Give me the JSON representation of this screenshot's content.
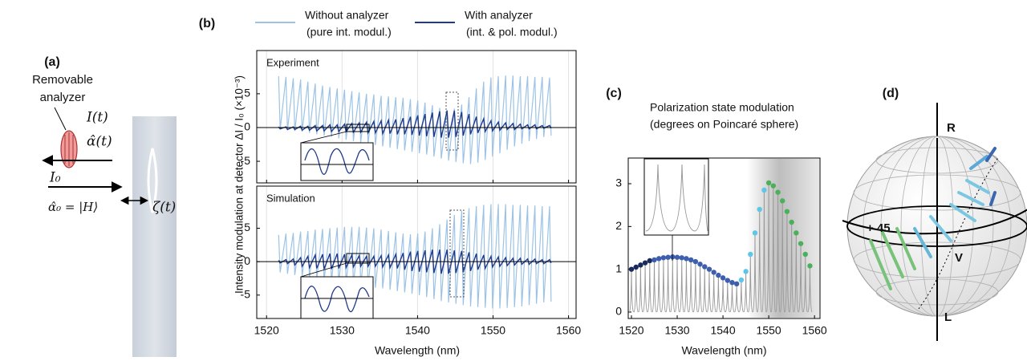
{
  "panel_a": {
    "label": "(a)",
    "analyzer_label": [
      "Removable",
      "analyzer"
    ],
    "intensity": "I(t)",
    "polarization": "α̂(t)",
    "input_intensity": "I₀",
    "input_state": "α̂₀ = |H⟩",
    "displacement": "ζ(t)"
  },
  "panel_b": {
    "label": "(b)",
    "ylabel": "Intensity modulation at detector  ΔI / I₀ (×10⁻³)",
    "xlabel": "Wavelength (nm)"
  },
  "panel_d": {
    "label": "(d)",
    "pole_top": "R",
    "pole_bottom": "L",
    "left_point": "+ 45",
    "front_point": "V"
  },
  "chart_data": [
    {
      "type": "line",
      "title": "Experiment",
      "xlim": [
        1518.7,
        1561
      ],
      "ylim": [
        -8.2,
        11.4
      ],
      "xticks": [
        1520,
        1530,
        1540,
        1550,
        1560
      ],
      "yticks": [
        -5,
        0,
        5
      ],
      "grid": true,
      "x": [
        1521.6,
        1521.8,
        1522.57,
        1522.77,
        1523.54,
        1523.74,
        1524.51,
        1524.71,
        1525.48,
        1525.68,
        1526.45,
        1526.65,
        1527.42,
        1527.62,
        1528.39,
        1528.59,
        1529.36,
        1529.56,
        1530.33,
        1530.53,
        1531.3,
        1531.5,
        1532.27,
        1532.47,
        1533.24,
        1533.44,
        1534.21,
        1534.41,
        1535.18,
        1535.38,
        1536.15,
        1536.35,
        1537.12,
        1537.32,
        1538.09,
        1538.29,
        1539.06,
        1539.26,
        1540.03,
        1540.23,
        1541.0,
        1541.2,
        1541.97,
        1542.17,
        1542.94,
        1543.14,
        1543.91,
        1544.11,
        1544.88,
        1545.08,
        1545.85,
        1546.05,
        1546.82,
        1547.02,
        1547.79,
        1547.99,
        1548.76,
        1548.96,
        1549.73,
        1549.93,
        1550.7,
        1550.9,
        1551.67,
        1551.87,
        1552.64,
        1552.84,
        1553.61,
        1553.81,
        1554.58,
        1554.78,
        1555.55,
        1555.75,
        1556.52,
        1556.72,
        1557.49,
        1557.69
      ],
      "series": [
        {
          "name": "Without analyzer",
          "legend_detail": "(pure int. modul.)",
          "color": "#9cc3e6",
          "values": [
            7.6,
            -0.3,
            7.5,
            -0.4,
            7.3,
            -0.5,
            7.1,
            -0.6,
            6.8,
            -0.8,
            6.5,
            -1.0,
            6.2,
            -1.2,
            6.0,
            -1.4,
            5.8,
            -1.6,
            5.6,
            -1.8,
            5.4,
            -2.0,
            5.2,
            -2.2,
            5.0,
            -2.4,
            4.9,
            -2.6,
            4.7,
            -2.8,
            4.6,
            -3.0,
            4.5,
            -3.2,
            4.4,
            -3.4,
            4.2,
            -3.6,
            4.0,
            -3.8,
            3.7,
            -4.0,
            3.3,
            -4.3,
            2.9,
            -4.6,
            2.6,
            -4.9,
            2.8,
            -5.1,
            3.4,
            -5.3,
            4.5,
            -5.4,
            5.8,
            -5.2,
            6.8,
            -4.8,
            7.4,
            -4.3,
            7.6,
            -3.8,
            7.7,
            -3.3,
            7.7,
            -2.8,
            7.6,
            -2.4,
            7.6,
            -2.0,
            7.5,
            -1.7,
            7.5,
            -1.4,
            7.4,
            -1.2
          ]
        },
        {
          "name": "With analyzer",
          "legend_detail": "(int. & pol. modul.)",
          "color": "#1f3a8a",
          "values": [
            0.1,
            -0.2,
            0.1,
            -0.3,
            0.1,
            -0.3,
            0.2,
            -0.4,
            0.2,
            -0.4,
            0.3,
            -0.5,
            0.3,
            -0.5,
            0.4,
            -0.6,
            0.4,
            -0.6,
            0.5,
            -0.6,
            0.6,
            -0.7,
            0.7,
            -0.7,
            0.8,
            -0.8,
            0.9,
            -0.8,
            1.0,
            -0.9,
            1.1,
            -0.9,
            1.2,
            -1.0,
            1.4,
            -1.0,
            1.6,
            -1.1,
            1.8,
            -1.2,
            2.0,
            -1.3,
            2.2,
            -1.4,
            2.4,
            -1.5,
            2.5,
            -1.5,
            2.5,
            -1.4,
            2.3,
            -1.2,
            2.0,
            -1.0,
            1.6,
            -0.8,
            1.3,
            -0.6,
            1.0,
            -0.5,
            0.8,
            -0.4,
            0.7,
            -0.3,
            0.6,
            -0.3,
            0.5,
            -0.2,
            0.4,
            -0.2,
            0.4,
            -0.2,
            0.3,
            -0.1,
            0.3,
            -0.1
          ]
        }
      ]
    },
    {
      "type": "line",
      "title": "Simulation",
      "xlim": [
        1518.7,
        1561
      ],
      "ylim": [
        -8.5,
        11.3
      ],
      "xticks": [
        1520,
        1530,
        1540,
        1550,
        1560
      ],
      "yticks": [
        -5,
        0,
        5
      ],
      "grid": true,
      "x": [
        1521.6,
        1521.8,
        1522.57,
        1522.77,
        1523.54,
        1523.74,
        1524.51,
        1524.71,
        1525.48,
        1525.68,
        1526.45,
        1526.65,
        1527.42,
        1527.62,
        1528.39,
        1528.59,
        1529.36,
        1529.56,
        1530.33,
        1530.53,
        1531.3,
        1531.5,
        1532.27,
        1532.47,
        1533.24,
        1533.44,
        1534.21,
        1534.41,
        1535.18,
        1535.38,
        1536.15,
        1536.35,
        1537.12,
        1537.32,
        1538.09,
        1538.29,
        1539.06,
        1539.26,
        1540.03,
        1540.23,
        1541.0,
        1541.2,
        1541.97,
        1542.17,
        1542.94,
        1543.14,
        1543.91,
        1544.11,
        1544.88,
        1545.08,
        1545.85,
        1546.05,
        1546.82,
        1547.02,
        1547.79,
        1547.99,
        1548.76,
        1548.96,
        1549.73,
        1549.93,
        1550.7,
        1550.9,
        1551.67,
        1551.87,
        1552.64,
        1552.84,
        1553.61,
        1553.81,
        1554.58,
        1554.78,
        1555.55,
        1555.75,
        1556.52,
        1556.72,
        1557.49,
        1557.69
      ],
      "series": [
        {
          "color": "#9cc3e6",
          "values": [
            4.0,
            -1.6,
            4.2,
            -1.8,
            4.3,
            -2.0,
            4.5,
            -2.2,
            4.6,
            -2.4,
            4.8,
            -2.6,
            4.9,
            -2.8,
            5.0,
            -3.0,
            5.1,
            -3.2,
            5.2,
            -3.3,
            5.2,
            -3.5,
            5.2,
            -3.6,
            5.1,
            -3.7,
            5.0,
            -3.9,
            4.8,
            -4.0,
            4.6,
            -4.2,
            4.4,
            -4.4,
            4.2,
            -4.6,
            4.1,
            -4.8,
            4.2,
            -5.0,
            4.5,
            -5.3,
            5.0,
            -5.6,
            5.6,
            -5.9,
            6.3,
            -6.1,
            7.0,
            -6.3,
            7.6,
            -6.5,
            8.0,
            -6.7,
            8.3,
            -6.8,
            8.5,
            -6.9,
            8.6,
            -7.0,
            8.6,
            -7.0,
            8.6,
            -6.9,
            8.5,
            -6.8,
            8.5,
            -6.7,
            8.4,
            -6.5,
            8.4,
            -6.3,
            8.3,
            -6.1,
            8.3,
            -6.0
          ]
        },
        {
          "color": "#1f3a8a",
          "values": [
            0.2,
            -0.2,
            0.3,
            -0.3,
            0.4,
            -0.5,
            0.6,
            -0.7,
            0.8,
            -0.9,
            1.0,
            -1.0,
            1.1,
            -1.1,
            1.2,
            -1.1,
            1.2,
            -1.0,
            1.1,
            -0.9,
            1.0,
            -0.8,
            0.9,
            -0.7,
            0.8,
            -0.7,
            0.8,
            -0.7,
            0.9,
            -0.8,
            1.0,
            -0.9,
            1.1,
            -1.0,
            1.3,
            -1.2,
            1.5,
            -1.4,
            1.6,
            -1.5,
            1.7,
            -1.6,
            1.8,
            -1.7,
            1.8,
            -1.8,
            1.8,
            -1.8,
            1.7,
            -1.7,
            1.6,
            -1.6,
            1.4,
            -1.4,
            1.2,
            -1.2,
            1.0,
            -1.0,
            0.8,
            -0.8,
            0.7,
            -0.7,
            0.6,
            -0.6,
            0.5,
            -0.5,
            0.5,
            -0.4,
            0.4,
            -0.4,
            0.4,
            -0.3,
            0.3,
            -0.3,
            0.3,
            -0.2
          ]
        }
      ]
    },
    {
      "type": "scatter",
      "label": "(c)",
      "title": "Polarization state modulation",
      "subtitle": "(degrees on Poincaré sphere)",
      "xlabel": "Wavelength (nm)",
      "xlim": [
        1519.3,
        1561.2
      ],
      "ylim": [
        -0.15,
        3.6
      ],
      "xticks": [
        1520,
        1530,
        1540,
        1550,
        1560
      ],
      "yticks": [
        0,
        1,
        2,
        3
      ],
      "peak_color": "#9a9a9a",
      "series": [
        {
          "color": "#1b2a5c",
          "x": [
            1520,
            1521,
            1522,
            1523,
            1524
          ],
          "values": [
            1.0,
            1.05,
            1.1,
            1.15,
            1.2
          ]
        },
        {
          "color": "#3d5fae",
          "x": [
            1525,
            1526,
            1527,
            1528,
            1529,
            1530,
            1531,
            1532,
            1533,
            1534,
            1535,
            1536,
            1537,
            1538,
            1539,
            1540,
            1541,
            1542,
            1543
          ],
          "values": [
            1.22,
            1.25,
            1.27,
            1.28,
            1.29,
            1.28,
            1.27,
            1.25,
            1.22,
            1.18,
            1.12,
            1.06,
            1.0,
            0.93,
            0.86,
            0.8,
            0.74,
            0.69,
            0.66
          ]
        },
        {
          "color": "#5ec6e6",
          "x": [
            1544,
            1545,
            1546,
            1547,
            1548,
            1549
          ],
          "values": [
            0.75,
            0.95,
            1.35,
            1.85,
            2.4,
            2.85
          ]
        },
        {
          "color": "#4bb05a",
          "x": [
            1550,
            1551,
            1552,
            1553,
            1554,
            1555,
            1556,
            1557,
            1558,
            1559
          ],
          "values": [
            3.02,
            2.95,
            2.8,
            2.6,
            2.35,
            2.1,
            1.85,
            1.6,
            1.35,
            1.08
          ]
        }
      ]
    }
  ]
}
